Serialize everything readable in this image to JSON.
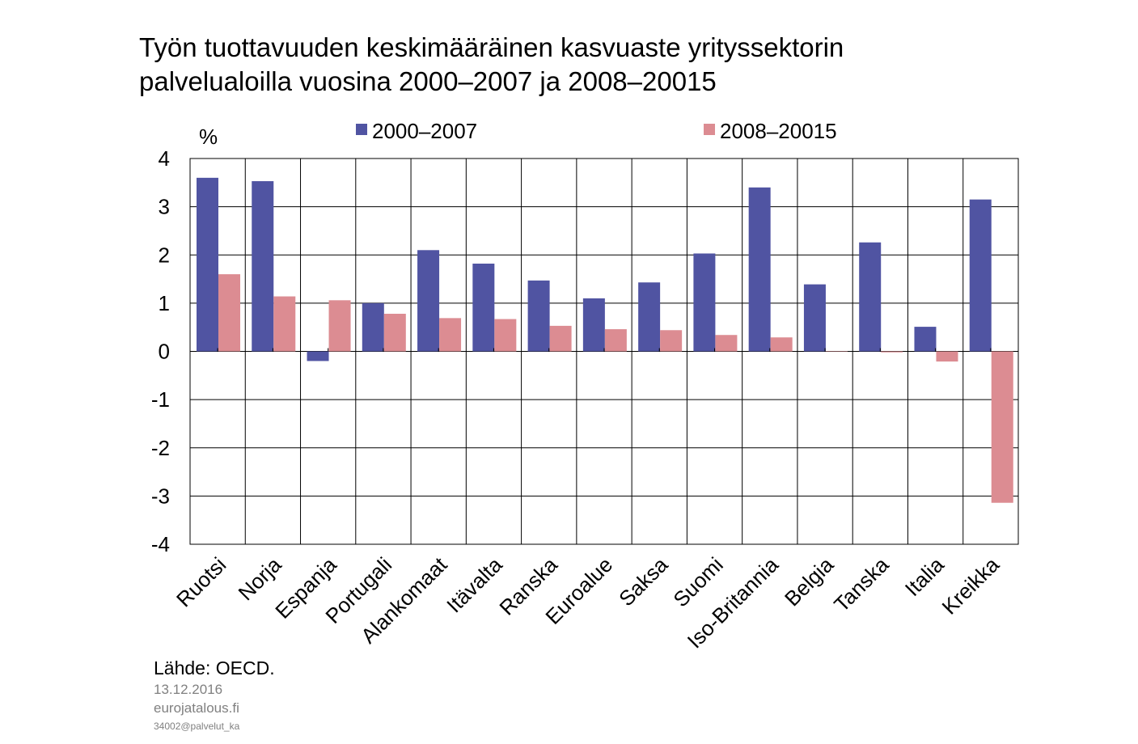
{
  "chart_data": {
    "type": "bar",
    "title": [
      "Työn tuottavuuden keskimääräinen kasvuaste yrityssektorin",
      "palvelualoilla vuosina 2000–2007 ja 2008–20015"
    ],
    "y_label": "%",
    "categories": [
      "Ruotsi",
      "Norja",
      "Espanja",
      "Portugali",
      "Alankomaat",
      "Itävalta",
      "Ranska",
      "Euroalue",
      "Saksa",
      "Suomi",
      "Iso-Britannia",
      "Belgia",
      "Tanska",
      "Italia",
      "Kreikka"
    ],
    "series": [
      {
        "name": "2000–2007",
        "color": "#5054a2",
        "values": [
          3.6,
          3.53,
          -0.2,
          1.0,
          2.1,
          1.82,
          1.47,
          1.1,
          1.43,
          2.03,
          3.4,
          1.39,
          2.26,
          0.51,
          3.15
        ]
      },
      {
        "name": "2008–20015",
        "color": "#dc8c92",
        "values": [
          1.6,
          1.14,
          1.06,
          0.78,
          0.69,
          0.67,
          0.53,
          0.46,
          0.44,
          0.34,
          0.29,
          0,
          -0.02,
          -0.21,
          -3.14
        ]
      }
    ],
    "ylim": [
      -4,
      4
    ],
    "yticks": [
      -4,
      -3,
      -2,
      -1,
      0,
      1,
      2,
      3,
      4
    ],
    "grid": true,
    "source": "Lähde: OECD.",
    "date": "13.12.2016",
    "site": "eurojatalous.fi",
    "code": "34002@palvelut_ka"
  }
}
